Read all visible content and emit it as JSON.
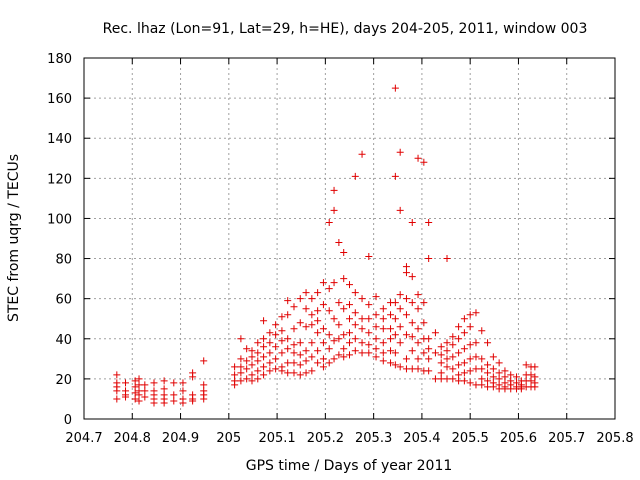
{
  "chart_data": {
    "type": "scatter",
    "title": "Rec. lhaz (Lon=91, Lat=29, h=HE), days 204-205, 2011, window 003",
    "xlabel": "GPS time / Days of year 2011",
    "ylabel": "STEC from uqrg / TECUs",
    "xlim": [
      204.7,
      205.8
    ],
    "ylim": [
      0,
      180
    ],
    "x_ticks": [
      204.7,
      204.8,
      204.9,
      205,
      205.1,
      205.2,
      205.3,
      205.4,
      205.5,
      205.6,
      205.7,
      205.8
    ],
    "x_tick_labels": [
      "204.7",
      "204.8",
      "204.9",
      "205",
      "205.1",
      "205.2",
      "205.3",
      "205.4",
      "205.5",
      "205.6",
      "205.7",
      "205.8"
    ],
    "y_ticks": [
      0,
      20,
      40,
      60,
      80,
      100,
      120,
      140,
      160,
      180
    ],
    "y_tick_labels": [
      "0",
      "20",
      "40",
      "60",
      "80",
      "100",
      "120",
      "140",
      "160",
      "180"
    ],
    "grid": true,
    "marker": "+",
    "color": "#e00000",
    "points": [
      [
        204.768,
        22
      ],
      [
        204.768,
        18
      ],
      [
        204.768,
        16
      ],
      [
        204.768,
        14
      ],
      [
        204.768,
        10
      ],
      [
        204.786,
        18
      ],
      [
        204.786,
        14
      ],
      [
        204.786,
        12
      ],
      [
        204.786,
        11
      ],
      [
        204.806,
        19
      ],
      [
        204.806,
        16
      ],
      [
        204.806,
        13
      ],
      [
        204.806,
        10
      ],
      [
        204.814,
        20
      ],
      [
        204.814,
        17
      ],
      [
        204.814,
        14
      ],
      [
        204.814,
        12
      ],
      [
        204.814,
        9
      ],
      [
        204.826,
        17
      ],
      [
        204.826,
        14
      ],
      [
        204.826,
        11
      ],
      [
        204.845,
        18
      ],
      [
        204.845,
        14
      ],
      [
        204.845,
        12
      ],
      [
        204.845,
        10
      ],
      [
        204.845,
        8
      ],
      [
        204.866,
        19
      ],
      [
        204.866,
        15
      ],
      [
        204.866,
        12
      ],
      [
        204.866,
        10
      ],
      [
        204.866,
        8
      ],
      [
        204.886,
        18
      ],
      [
        204.886,
        12
      ],
      [
        204.886,
        9
      ],
      [
        204.905,
        18
      ],
      [
        204.905,
        14
      ],
      [
        204.905,
        10
      ],
      [
        204.905,
        8
      ],
      [
        204.925,
        23
      ],
      [
        204.925,
        21
      ],
      [
        204.925,
        12
      ],
      [
        204.925,
        10
      ],
      [
        204.925,
        9
      ],
      [
        204.948,
        29
      ],
      [
        204.948,
        17
      ],
      [
        204.948,
        14
      ],
      [
        204.948,
        12
      ],
      [
        204.948,
        10
      ],
      [
        205.012,
        26
      ],
      [
        205.012,
        22
      ],
      [
        205.012,
        19
      ],
      [
        205.012,
        17
      ],
      [
        205.025,
        40
      ],
      [
        205.025,
        30
      ],
      [
        205.025,
        26
      ],
      [
        205.025,
        23
      ],
      [
        205.025,
        19
      ],
      [
        205.037,
        35
      ],
      [
        205.037,
        29
      ],
      [
        205.037,
        25
      ],
      [
        205.037,
        20
      ],
      [
        205.048,
        34
      ],
      [
        205.048,
        31
      ],
      [
        205.048,
        27
      ],
      [
        205.048,
        22
      ],
      [
        205.048,
        19
      ],
      [
        205.06,
        38
      ],
      [
        205.06,
        33
      ],
      [
        205.06,
        29
      ],
      [
        205.06,
        24
      ],
      [
        205.06,
        20
      ],
      [
        205.072,
        49
      ],
      [
        205.072,
        40
      ],
      [
        205.072,
        36
      ],
      [
        205.072,
        31
      ],
      [
        205.072,
        26
      ],
      [
        205.072,
        22
      ],
      [
        205.085,
        43
      ],
      [
        205.085,
        38
      ],
      [
        205.085,
        33
      ],
      [
        205.085,
        28
      ],
      [
        205.085,
        24
      ],
      [
        205.097,
        47
      ],
      [
        205.097,
        42
      ],
      [
        205.097,
        36
      ],
      [
        205.097,
        30
      ],
      [
        205.097,
        25
      ],
      [
        205.11,
        51
      ],
      [
        205.11,
        44
      ],
      [
        205.11,
        39
      ],
      [
        205.11,
        33
      ],
      [
        205.11,
        26
      ],
      [
        205.11,
        24
      ],
      [
        205.122,
        59
      ],
      [
        205.122,
        52
      ],
      [
        205.122,
        40
      ],
      [
        205.122,
        35
      ],
      [
        205.122,
        28
      ],
      [
        205.122,
        23
      ],
      [
        205.135,
        56
      ],
      [
        205.135,
        45
      ],
      [
        205.135,
        37
      ],
      [
        205.135,
        33
      ],
      [
        205.135,
        28
      ],
      [
        205.135,
        23
      ],
      [
        205.148,
        60
      ],
      [
        205.148,
        48
      ],
      [
        205.148,
        38
      ],
      [
        205.148,
        32
      ],
      [
        205.148,
        27
      ],
      [
        205.148,
        22
      ],
      [
        205.16,
        63
      ],
      [
        205.16,
        55
      ],
      [
        205.16,
        46
      ],
      [
        205.16,
        34
      ],
      [
        205.16,
        29
      ],
      [
        205.16,
        23
      ],
      [
        205.172,
        60
      ],
      [
        205.172,
        52
      ],
      [
        205.172,
        47
      ],
      [
        205.172,
        38
      ],
      [
        205.172,
        31
      ],
      [
        205.172,
        24
      ],
      [
        205.184,
        63
      ],
      [
        205.184,
        54
      ],
      [
        205.184,
        49
      ],
      [
        205.184,
        43
      ],
      [
        205.184,
        34
      ],
      [
        205.184,
        28
      ],
      [
        205.196,
        68
      ],
      [
        205.196,
        57
      ],
      [
        205.196,
        45
      ],
      [
        205.196,
        38
      ],
      [
        205.196,
        30
      ],
      [
        205.196,
        26
      ],
      [
        205.208,
        98
      ],
      [
        205.208,
        65
      ],
      [
        205.208,
        54
      ],
      [
        205.208,
        42
      ],
      [
        205.208,
        35
      ],
      [
        205.208,
        28
      ],
      [
        205.218,
        114
      ],
      [
        205.218,
        104
      ],
      [
        205.218,
        68
      ],
      [
        205.218,
        50
      ],
      [
        205.218,
        39
      ],
      [
        205.218,
        30
      ],
      [
        205.228,
        88
      ],
      [
        205.228,
        58
      ],
      [
        205.228,
        47
      ],
      [
        205.228,
        40
      ],
      [
        205.228,
        32
      ],
      [
        205.238,
        83
      ],
      [
        205.238,
        70
      ],
      [
        205.238,
        55
      ],
      [
        205.238,
        42
      ],
      [
        205.238,
        35
      ],
      [
        205.238,
        31
      ],
      [
        205.25,
        67
      ],
      [
        205.25,
        57
      ],
      [
        205.25,
        50
      ],
      [
        205.25,
        43
      ],
      [
        205.25,
        38
      ],
      [
        205.25,
        32
      ],
      [
        205.262,
        121
      ],
      [
        205.262,
        63
      ],
      [
        205.262,
        53
      ],
      [
        205.262,
        47
      ],
      [
        205.262,
        40
      ],
      [
        205.262,
        34
      ],
      [
        205.276,
        132
      ],
      [
        205.276,
        60
      ],
      [
        205.276,
        50
      ],
      [
        205.276,
        45
      ],
      [
        205.276,
        38
      ],
      [
        205.276,
        33
      ],
      [
        205.29,
        81
      ],
      [
        205.29,
        57
      ],
      [
        205.29,
        50
      ],
      [
        205.29,
        43
      ],
      [
        205.29,
        37
      ],
      [
        205.29,
        33
      ],
      [
        205.305,
        61
      ],
      [
        205.305,
        52
      ],
      [
        205.305,
        46
      ],
      [
        205.305,
        40
      ],
      [
        205.305,
        35
      ],
      [
        205.305,
        31
      ],
      [
        205.32,
        55
      ],
      [
        205.32,
        50
      ],
      [
        205.32,
        45
      ],
      [
        205.32,
        38
      ],
      [
        205.32,
        33
      ],
      [
        205.32,
        29
      ],
      [
        205.335,
        58
      ],
      [
        205.335,
        52
      ],
      [
        205.335,
        45
      ],
      [
        205.335,
        40
      ],
      [
        205.335,
        34
      ],
      [
        205.335,
        28
      ],
      [
        205.345,
        165
      ],
      [
        205.345,
        121
      ],
      [
        205.345,
        58
      ],
      [
        205.345,
        50
      ],
      [
        205.345,
        42
      ],
      [
        205.345,
        33
      ],
      [
        205.345,
        27
      ],
      [
        205.355,
        133
      ],
      [
        205.355,
        104
      ],
      [
        205.355,
        62
      ],
      [
        205.355,
        55
      ],
      [
        205.355,
        46
      ],
      [
        205.355,
        38
      ],
      [
        205.355,
        26
      ],
      [
        205.368,
        76
      ],
      [
        205.368,
        73
      ],
      [
        205.368,
        60
      ],
      [
        205.368,
        52
      ],
      [
        205.368,
        42
      ],
      [
        205.368,
        30
      ],
      [
        205.368,
        25
      ],
      [
        205.38,
        98
      ],
      [
        205.38,
        71
      ],
      [
        205.38,
        58
      ],
      [
        205.38,
        48
      ],
      [
        205.38,
        41
      ],
      [
        205.38,
        34
      ],
      [
        205.38,
        25
      ],
      [
        205.392,
        130
      ],
      [
        205.392,
        62
      ],
      [
        205.392,
        55
      ],
      [
        205.392,
        45
      ],
      [
        205.392,
        38
      ],
      [
        205.392,
        30
      ],
      [
        205.392,
        25
      ],
      [
        205.404,
        128
      ],
      [
        205.404,
        58
      ],
      [
        205.404,
        48
      ],
      [
        205.404,
        40
      ],
      [
        205.404,
        33
      ],
      [
        205.404,
        24
      ],
      [
        205.414,
        98
      ],
      [
        205.414,
        80
      ],
      [
        205.414,
        40
      ],
      [
        205.414,
        35
      ],
      [
        205.414,
        30
      ],
      [
        205.414,
        24
      ],
      [
        205.428,
        43
      ],
      [
        205.428,
        33
      ],
      [
        205.428,
        20
      ],
      [
        205.44,
        36
      ],
      [
        205.44,
        32
      ],
      [
        205.44,
        28
      ],
      [
        205.44,
        23
      ],
      [
        205.44,
        20
      ],
      [
        205.452,
        80
      ],
      [
        205.452,
        38
      ],
      [
        205.452,
        34
      ],
      [
        205.452,
        30
      ],
      [
        205.452,
        26
      ],
      [
        205.452,
        20
      ],
      [
        205.464,
        41
      ],
      [
        205.464,
        37
      ],
      [
        205.464,
        31
      ],
      [
        205.464,
        25
      ],
      [
        205.464,
        20
      ],
      [
        205.476,
        46
      ],
      [
        205.476,
        40
      ],
      [
        205.476,
        33
      ],
      [
        205.476,
        27
      ],
      [
        205.476,
        22
      ],
      [
        205.476,
        19
      ],
      [
        205.488,
        50
      ],
      [
        205.488,
        43
      ],
      [
        205.488,
        35
      ],
      [
        205.488,
        28
      ],
      [
        205.488,
        23
      ],
      [
        205.488,
        19
      ],
      [
        205.5,
        52
      ],
      [
        205.5,
        46
      ],
      [
        205.5,
        37
      ],
      [
        205.5,
        30
      ],
      [
        205.5,
        24
      ],
      [
        205.5,
        18
      ],
      [
        205.512,
        53
      ],
      [
        205.512,
        38
      ],
      [
        205.512,
        31
      ],
      [
        205.512,
        25
      ],
      [
        205.512,
        17
      ],
      [
        205.524,
        44
      ],
      [
        205.524,
        30
      ],
      [
        205.524,
        25
      ],
      [
        205.524,
        20
      ],
      [
        205.524,
        17
      ],
      [
        205.536,
        38
      ],
      [
        205.536,
        27
      ],
      [
        205.536,
        23
      ],
      [
        205.536,
        19
      ],
      [
        205.536,
        16
      ],
      [
        205.548,
        31
      ],
      [
        205.548,
        25
      ],
      [
        205.548,
        21
      ],
      [
        205.548,
        18
      ],
      [
        205.548,
        16
      ],
      [
        205.56,
        28
      ],
      [
        205.56,
        23
      ],
      [
        205.56,
        20
      ],
      [
        205.56,
        17
      ],
      [
        205.56,
        15
      ],
      [
        205.572,
        24
      ],
      [
        205.572,
        21
      ],
      [
        205.572,
        18
      ],
      [
        205.572,
        16
      ],
      [
        205.572,
        15
      ],
      [
        205.584,
        22
      ],
      [
        205.584,
        19
      ],
      [
        205.584,
        17
      ],
      [
        205.584,
        15
      ],
      [
        205.596,
        21
      ],
      [
        205.596,
        18
      ],
      [
        205.596,
        16
      ],
      [
        205.596,
        15
      ],
      [
        205.606,
        19
      ],
      [
        205.606,
        17
      ],
      [
        205.606,
        16
      ],
      [
        205.606,
        15
      ],
      [
        205.616,
        27
      ],
      [
        205.616,
        22
      ],
      [
        205.616,
        19
      ],
      [
        205.616,
        16
      ],
      [
        205.626,
        26
      ],
      [
        205.626,
        22
      ],
      [
        205.626,
        19
      ],
      [
        205.626,
        16
      ],
      [
        205.634,
        26
      ],
      [
        205.634,
        21
      ],
      [
        205.634,
        18
      ],
      [
        205.634,
        16
      ]
    ]
  }
}
